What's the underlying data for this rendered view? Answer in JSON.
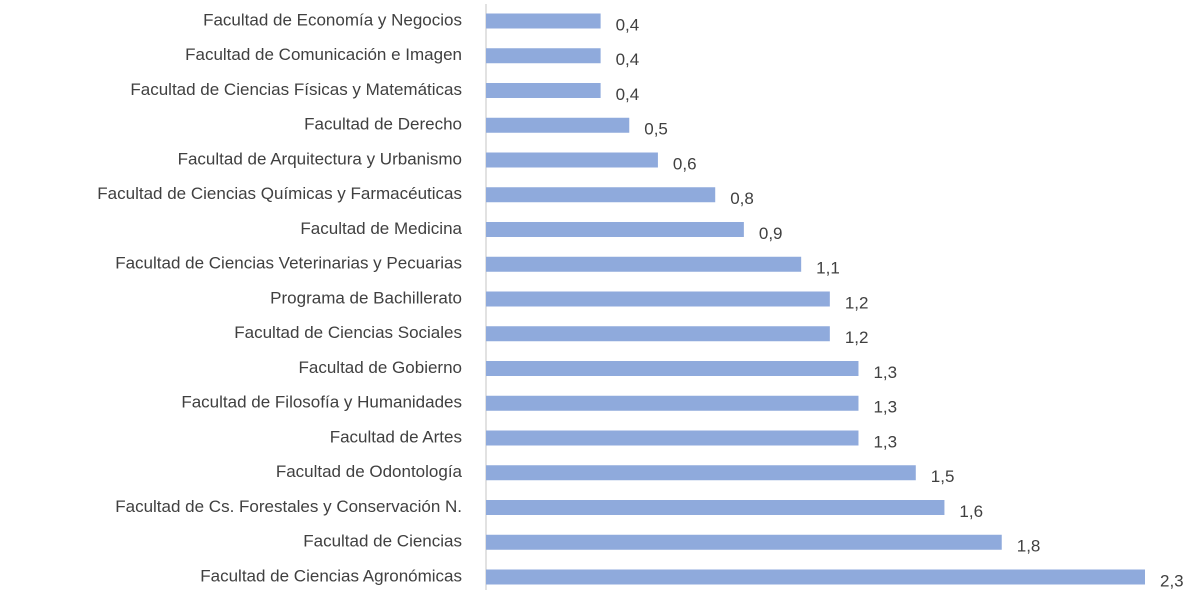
{
  "chart_data": {
    "type": "barh",
    "categories": [
      "Facultad de Economía y Negocios",
      "Facultad de Comunicación e Imagen",
      "Facultad de Ciencias Físicas y Matemáticas",
      "Facultad de Derecho",
      "Facultad de Arquitectura y Urbanismo",
      "Facultad de Ciencias Químicas y Farmacéuticas",
      "Facultad de Medicina",
      "Facultad de Ciencias Veterinarias y Pecuarias",
      "Programa de Bachillerato",
      "Facultad de Ciencias Sociales",
      "Facultad de Gobierno",
      "Facultad de Filosofía y Humanidades",
      "Facultad de Artes",
      "Facultad de Odontología",
      "Facultad de Cs. Forestales y Conservación N.",
      "Facultad de Ciencias",
      "Facultad de Ciencias Agronómicas"
    ],
    "values": [
      0.4,
      0.4,
      0.4,
      0.5,
      0.6,
      0.8,
      0.9,
      1.1,
      1.2,
      1.2,
      1.3,
      1.3,
      1.3,
      1.5,
      1.6,
      1.8,
      2.3
    ],
    "value_labels": [
      "0,4",
      "0,4",
      "0,4",
      "0,5",
      "0,6",
      "0,8",
      "0,9",
      "1,1",
      "1,2",
      "1,2",
      "1,3",
      "1,3",
      "1,3",
      "1,5",
      "1,6",
      "1,8",
      "2,3"
    ],
    "color": "#8faadc"
  }
}
